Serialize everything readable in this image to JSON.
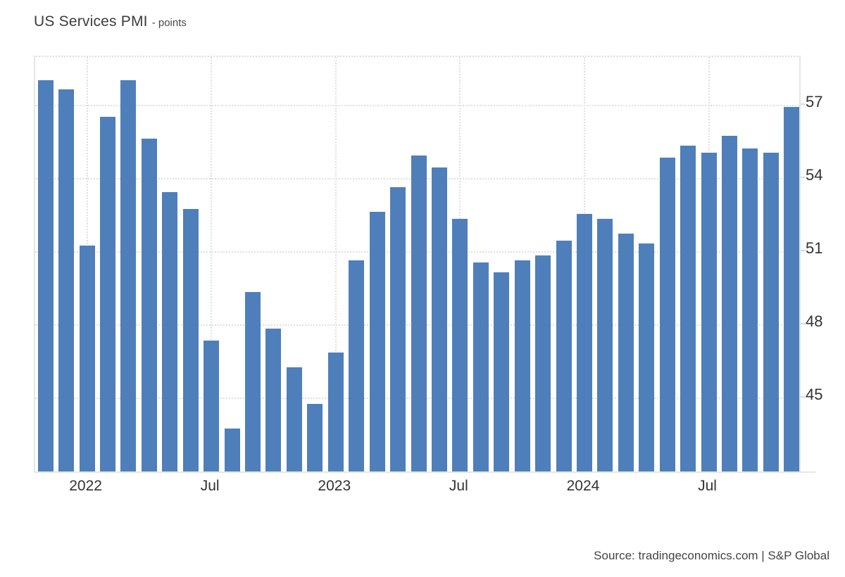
{
  "header": {
    "title": "US Services PMI",
    "unit_label": "- points"
  },
  "footer": {
    "source": "Source: tradingeconomics.com | S&P Global"
  },
  "colors": {
    "bar": "#4e7fba",
    "grid": "#dfdfdf",
    "axis_text": "#333333",
    "border": "#e6e6e6"
  },
  "chart_data": {
    "type": "bar",
    "title": "US Services PMI",
    "ylabel": "points",
    "x": [
      "Nov 2021",
      "Dec 2021",
      "Jan 2022",
      "Feb 2022",
      "Mar 2022",
      "Apr 2022",
      "May 2022",
      "Jun 2022",
      "Jul 2022",
      "Aug 2022",
      "Sep 2022",
      "Oct 2022",
      "Nov 2022",
      "Dec 2022",
      "Jan 2023",
      "Feb 2023",
      "Mar 2023",
      "Apr 2023",
      "May 2023",
      "Jun 2023",
      "Jul 2023",
      "Aug 2023",
      "Sep 2023",
      "Oct 2023",
      "Nov 2023",
      "Dec 2023",
      "Jan 2024",
      "Feb 2024",
      "Mar 2024",
      "Apr 2024",
      "May 2024",
      "Jun 2024",
      "Jul 2024",
      "Aug 2024",
      "Sep 2024",
      "Oct 2024",
      "Nov 2024"
    ],
    "values": [
      58.0,
      57.6,
      51.2,
      56.5,
      58.0,
      55.6,
      53.4,
      52.7,
      47.3,
      43.7,
      49.3,
      47.8,
      46.2,
      44.7,
      46.8,
      50.6,
      52.6,
      53.6,
      54.9,
      54.4,
      52.3,
      50.5,
      50.1,
      50.6,
      50.8,
      51.4,
      52.5,
      52.3,
      51.7,
      51.3,
      54.8,
      55.3,
      55.0,
      55.7,
      55.2,
      55.0,
      56.9
    ],
    "ylim": [
      41.9,
      59.0
    ],
    "yticks": [
      45,
      48,
      51,
      54,
      57
    ],
    "yticks_position": "right",
    "xticks": [
      {
        "index": 2,
        "label": "2022"
      },
      {
        "index": 8,
        "label": "Jul"
      },
      {
        "index": 14,
        "label": "2023"
      },
      {
        "index": 20,
        "label": "Jul"
      },
      {
        "index": 26,
        "label": "2024"
      },
      {
        "index": 32,
        "label": "Jul"
      }
    ],
    "grid": "dotted",
    "legend": "none",
    "bar_color": "#4e7fba"
  }
}
